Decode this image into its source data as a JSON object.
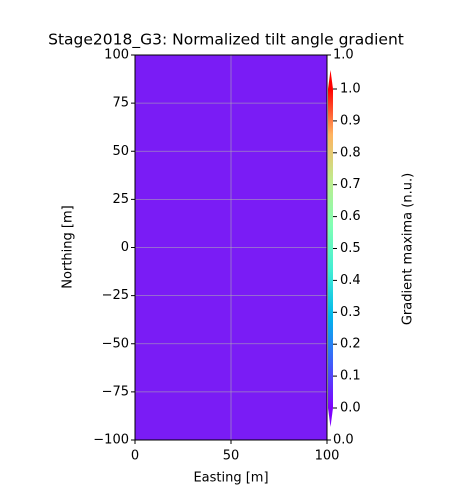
{
  "chart_data": {
    "type": "heatmap",
    "title": "Stage2018_G3: Normalized tilt angle gradient",
    "x_label": "Easting [m]",
    "y_label": "Northing [m]",
    "colorbar_label": "Gradient maxima (n.u.)",
    "xlim": [
      0,
      100
    ],
    "xticks": [
      0,
      50,
      100
    ],
    "ylim": [
      -100,
      100
    ],
    "yticks": [
      {
        "value": -100,
        "label": "−100"
      },
      {
        "value": -75,
        "label": "−75"
      },
      {
        "value": -50,
        "label": "−50"
      },
      {
        "value": -25,
        "label": "−25"
      },
      0,
      25,
      50,
      75,
      100
    ],
    "clim": [
      0,
      1
    ],
    "cticks": [
      {
        "value": 0,
        "label": "0.0"
      },
      {
        "value": 0.1,
        "label": "0.1"
      },
      {
        "value": 0.2,
        "label": "0.2"
      },
      {
        "value": 0.3,
        "label": "0.3"
      },
      {
        "value": 0.4,
        "label": "0.4"
      },
      {
        "value": 0.5,
        "label": "0.5"
      },
      {
        "value": 0.6,
        "label": "0.6"
      },
      {
        "value": 0.7,
        "label": "0.7"
      },
      {
        "value": 0.8,
        "label": "0.8"
      },
      {
        "value": 0.9,
        "label": "0.9"
      },
      {
        "value": 1,
        "label": "1.0"
      }
    ],
    "colorbar_end_ticks": [
      {
        "value": 0,
        "label": "0.0"
      },
      {
        "value": 1,
        "label": "1.0"
      }
    ],
    "colormap": [
      "#7f00ff",
      "#3f5ff9",
      "#00b5eb",
      "#40ecd4",
      "#80ffb4",
      "#c0eb8d",
      "#ffb360",
      "#ff0000"
    ],
    "grid": true
  }
}
